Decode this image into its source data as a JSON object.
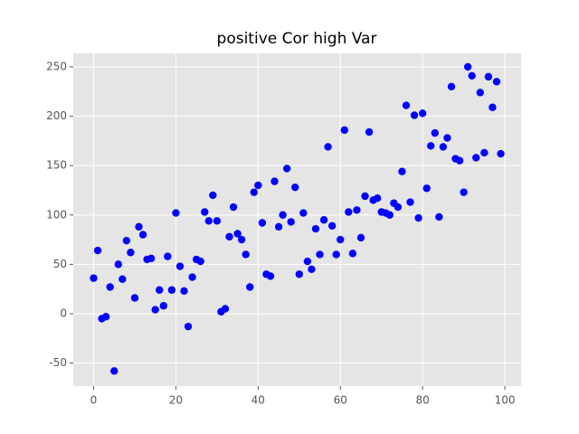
{
  "chart_data": {
    "type": "scatter",
    "title": "positive Cor high Var",
    "x": [
      0,
      1,
      2,
      3,
      4,
      5,
      6,
      7,
      8,
      9,
      10,
      11,
      12,
      13,
      14,
      15,
      16,
      17,
      18,
      19,
      20,
      21,
      22,
      23,
      24,
      25,
      26,
      27,
      28,
      29,
      30,
      31,
      32,
      33,
      34,
      35,
      36,
      37,
      38,
      39,
      40,
      41,
      42,
      43,
      44,
      45,
      46,
      47,
      48,
      49,
      50,
      51,
      52,
      53,
      54,
      55,
      56,
      57,
      58,
      59,
      60,
      61,
      62,
      63,
      64,
      65,
      66,
      67,
      68,
      69,
      70,
      71,
      72,
      73,
      74,
      75,
      76,
      77,
      78,
      79,
      80,
      81,
      82,
      83,
      84,
      85,
      86,
      87,
      88,
      89,
      90,
      91,
      92,
      93,
      94,
      95,
      96,
      97,
      98,
      99
    ],
    "series": [
      {
        "color": "#0000ff",
        "values": [
          36,
          64,
          -5,
          -3,
          27,
          -58,
          50,
          35,
          74,
          62,
          16,
          88,
          80,
          55,
          56,
          4,
          24,
          8,
          58,
          24,
          102,
          48,
          23,
          -13,
          37,
          55,
          53,
          103,
          94,
          120,
          94,
          2,
          5,
          78,
          108,
          81,
          75,
          60,
          27,
          123,
          130,
          92,
          40,
          38,
          134,
          88,
          100,
          147,
          93,
          128,
          40,
          102,
          53,
          45,
          86,
          60,
          95,
          169,
          89,
          60,
          75,
          186,
          103,
          61,
          105,
          77,
          119,
          184,
          115,
          117,
          103,
          102,
          100,
          112,
          108,
          144,
          211,
          113,
          201,
          97,
          203,
          127,
          170,
          183,
          98,
          169,
          178,
          230,
          157,
          155,
          123,
          250,
          241,
          158,
          224,
          163,
          240,
          209,
          235,
          162
        ]
      }
    ],
    "xlim": [
      -4.95,
      103.95
    ],
    "ylim": [
      -73.3,
      263.7
    ],
    "xticks": [
      0,
      20,
      40,
      60,
      80,
      100
    ],
    "yticks": [
      -50,
      0,
      50,
      100,
      150,
      200,
      250
    ],
    "grid": true
  }
}
